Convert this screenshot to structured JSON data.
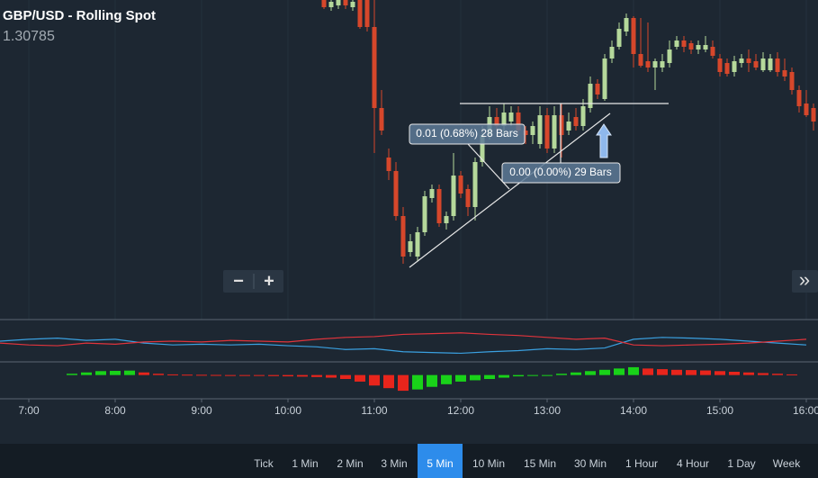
{
  "header": {
    "title": "GBP/USD - Rolling Spot",
    "price": "1.30785"
  },
  "chart_data": [
    {
      "type": "candlestick",
      "annotations": [
        "0.01 (0.68%) 28 Bars",
        "0.00 (0.00%) 29 Bars"
      ],
      "up_color": "#b5d89b",
      "down_color": "#d6472b",
      "grid": true,
      "xlim": [
        6.6667,
        16.1354
      ],
      "ylim": [
        1.2971,
        1.3146
      ],
      "xticks": [
        {
          "value": 7,
          "label": "7:00"
        },
        {
          "value": 8,
          "label": "8:00"
        },
        {
          "value": 9,
          "label": "9:00"
        },
        {
          "value": 10,
          "label": "10:00"
        },
        {
          "value": 11,
          "label": "11:00"
        },
        {
          "value": 12,
          "label": "12:00"
        },
        {
          "value": 13,
          "label": "13:00"
        },
        {
          "value": 14,
          "label": "14:00"
        },
        {
          "value": 15,
          "label": "15:00"
        },
        {
          "value": 16,
          "label": "16:00"
        }
      ],
      "x": [
        10.4167,
        10.5,
        10.5833,
        10.6667,
        10.75,
        10.8333,
        10.9167,
        11,
        11.0833,
        11.1667,
        11.25,
        11.3333,
        11.4167,
        11.5,
        11.5833,
        11.6667,
        11.75,
        11.8333,
        11.9167,
        12,
        12.0833,
        12.1667,
        12.25,
        12.3333,
        12.4167,
        12.5,
        12.5833,
        12.6667,
        12.75,
        12.8333,
        12.9167,
        13,
        13.0833,
        13.1667,
        13.25,
        13.3333,
        13.4167,
        13.5,
        13.5833,
        13.6667,
        13.75,
        13.8333,
        13.9167,
        14,
        14.0833,
        14.1667,
        14.25,
        14.3333,
        14.4167,
        14.5,
        14.5833,
        14.6667,
        14.75,
        14.8333,
        14.9167,
        15,
        15.0833,
        15.1667,
        15.25,
        15.3333,
        15.4167,
        15.5,
        15.5833,
        15.6667,
        15.75,
        15.8333,
        15.9167,
        16,
        16.0833
      ],
      "open": [
        1.3146,
        1.3142,
        1.3143,
        1.3146,
        1.3142,
        1.3146,
        1.3146,
        1.3131,
        1.3086,
        1.30585,
        1.3051,
        1.3026,
        1.3006,
        1.30035,
        1.3017,
        1.3036,
        1.3041,
        1.3022,
        1.3026,
        1.30485,
        1.3041,
        1.3031,
        1.3056,
        1.3071,
        1.3081,
        1.3076,
        1.30785,
        1.30835,
        1.30735,
        1.3071,
        1.3066,
        1.3082,
        1.30635,
        1.3082,
        1.30735,
        1.3081,
        1.3076,
        1.3086,
        1.30995,
        1.3091,
        1.31135,
        1.312,
        1.31285,
        1.3136,
        1.3116,
        1.3112,
        1.31085,
        1.31085,
        1.3111,
        1.312,
        1.31235,
        1.3122,
        1.31185,
        1.31185,
        1.312,
        1.31135,
        1.3111,
        1.3106,
        1.3111,
        1.31135,
        1.3112,
        1.3107,
        1.3107,
        1.31135,
        1.3107,
        1.3106,
        1.3096,
        1.30885,
        1.3086
      ],
      "high": [
        1.3146,
        1.3146,
        1.3146,
        1.3146,
        1.3146,
        1.3146,
        1.3146,
        1.3146,
        1.3096,
        1.30635,
        1.3056,
        1.3031,
        1.3016,
        1.302,
        1.304,
        1.30435,
        1.30435,
        1.30285,
        1.3061,
        1.3051,
        1.30435,
        1.30585,
        1.3076,
        1.3087,
        1.3086,
        1.30885,
        1.3087,
        1.3087,
        1.3076,
        1.30785,
        1.3087,
        1.3086,
        1.3087,
        1.30885,
        1.30835,
        1.3086,
        1.3091,
        1.31035,
        1.3102,
        1.3116,
        1.31235,
        1.31335,
        1.31385,
        1.3137,
        1.3136,
        1.31335,
        1.31135,
        1.3116,
        1.31235,
        1.3126,
        1.3126,
        1.31235,
        1.31235,
        1.3126,
        1.31235,
        1.3116,
        1.31135,
        1.3115,
        1.3116,
        1.31185,
        1.3116,
        1.3117,
        1.3116,
        1.3117,
        1.31135,
        1.31085,
        1.30985,
        1.3096,
        1.30885
      ],
      "low": [
        1.3141,
        1.314,
        1.3141,
        1.3141,
        1.314,
        1.313,
        1.31285,
        1.3061,
        1.3071,
        1.3046,
        1.30235,
        1.29995,
        1.30035,
        1.3001,
        1.3015,
        1.30335,
        1.302,
        1.30185,
        1.30235,
        1.3036,
        1.3026,
        1.30235,
        1.30535,
        1.30685,
        1.30735,
        1.3071,
        1.3076,
        1.3071,
        1.3066,
        1.3066,
        1.30635,
        1.3061,
        1.3061,
        1.30585,
        1.3071,
        1.30735,
        1.30735,
        1.30835,
        1.3091,
        1.309,
        1.3111,
        1.31185,
        1.3126,
        1.31085,
        1.31085,
        1.3106,
        1.3096,
        1.3106,
        1.31085,
        1.31185,
        1.3117,
        1.3116,
        1.3116,
        1.3117,
        1.31135,
        1.31035,
        1.31035,
        1.31035,
        1.31085,
        1.3106,
        1.3107,
        1.3106,
        1.3106,
        1.31035,
        1.3101,
        1.30935,
        1.30835,
        1.3081,
        1.30735
      ],
      "close": [
        1.3142,
        1.3145,
        1.3146,
        1.3143,
        1.3145,
        1.3131,
        1.3131,
        1.3086,
        1.30735,
        1.3051,
        1.3026,
        1.30035,
        1.3012,
        1.3017,
        1.3037,
        1.3041,
        1.3022,
        1.3026,
        1.30485,
        1.30385,
        1.3031,
        1.3056,
        1.3071,
        1.3081,
        1.3076,
        1.30835,
        1.30835,
        1.30735,
        1.3071,
        1.3076,
        1.3082,
        1.30635,
        1.3082,
        1.3071,
        1.30785,
        1.3076,
        1.3087,
        1.30995,
        1.30935,
        1.31135,
        1.312,
        1.313,
        1.3136,
        1.3116,
        1.31095,
        1.31085,
        1.3112,
        1.3112,
        1.31185,
        1.31235,
        1.312,
        1.31185,
        1.3121,
        1.3121,
        1.3115,
        1.3106,
        1.3105,
        1.3112,
        1.31135,
        1.3111,
        1.31085,
        1.31135,
        1.31135,
        1.3106,
        1.31035,
        1.3096,
        1.3087,
        1.3082,
        1.30785
      ]
    },
    {
      "type": "line",
      "xlim": [
        6.6667,
        16.1354
      ],
      "ylim": [
        0,
        100
      ],
      "x": [
        6.6667,
        7,
        7.3333,
        7.6667,
        8,
        8.3333,
        8.6667,
        9,
        9.3333,
        9.6667,
        10,
        10.3333,
        10.6667,
        11,
        11.3333,
        11.6667,
        12,
        12.3333,
        12.6667,
        13,
        13.3333,
        13.6667,
        14,
        14.3333,
        14.6667,
        15,
        15.3333,
        15.6667,
        16
      ],
      "series": [
        {
          "color": "#3aa0e0",
          "values": [
            50,
            55,
            58,
            52,
            55,
            45,
            40,
            42,
            40,
            42,
            38,
            35,
            28,
            30,
            22,
            20,
            18,
            22,
            25,
            30,
            28,
            32,
            55,
            60,
            58,
            55,
            50,
            45,
            40
          ]
        },
        {
          "color": "#e0343c",
          "values": [
            45,
            40,
            38,
            45,
            42,
            48,
            50,
            48,
            52,
            50,
            48,
            55,
            60,
            62,
            68,
            70,
            72,
            68,
            65,
            60,
            55,
            58,
            40,
            38,
            40,
            42,
            45,
            50,
            55
          ]
        }
      ]
    },
    {
      "type": "histogram",
      "xlim": [
        6.6667,
        16.1354
      ],
      "ylim": [
        -14,
        8
      ],
      "up_color": "#19d219",
      "down_color": "#e8251c",
      "x": [
        7.5,
        7.6667,
        7.8333,
        8,
        8.1667,
        8.3333,
        8.5,
        8.6667,
        8.8333,
        9,
        9.1667,
        9.3333,
        9.5,
        9.6667,
        9.8333,
        10,
        10.1667,
        10.3333,
        10.5,
        10.6667,
        10.8333,
        11,
        11.1667,
        11.3333,
        11.5,
        11.6667,
        11.8333,
        12,
        12.1667,
        12.3333,
        12.5,
        12.6667,
        12.8333,
        13,
        13.1667,
        13.3333,
        13.5,
        13.6667,
        13.8333,
        14,
        14.1667,
        14.3333,
        14.5,
        14.6667,
        14.8333,
        15,
        15.1667,
        15.3333,
        15.5,
        15.6667,
        15.8333
      ],
      "values": [
        1,
        2,
        3,
        3.2,
        3.4,
        2,
        1,
        0.5,
        0.3,
        0.2,
        0.1,
        0,
        -0.3,
        -0.5,
        -0.8,
        -1,
        -1.2,
        -1.5,
        -2,
        -3,
        -5,
        -8,
        -10,
        -12,
        -11,
        -9,
        -7,
        -5,
        -4,
        -3,
        -2,
        -1,
        -0.5,
        0,
        1,
        2,
        3,
        4,
        5,
        6,
        5,
        4.5,
        4,
        3.8,
        3.5,
        3,
        2.5,
        2,
        1.5,
        1,
        0.5
      ]
    }
  ],
  "controls": {
    "zoom_out": "−",
    "zoom_in": "+",
    "scroll": "»"
  },
  "timeframes": {
    "items": [
      "Tick",
      "1 Min",
      "2 Min",
      "3 Min",
      "5 Min",
      "10 Min",
      "15 Min",
      "30 Min",
      "1 Hour",
      "4 Hour",
      "1 Day",
      "Week"
    ],
    "active": 4
  }
}
